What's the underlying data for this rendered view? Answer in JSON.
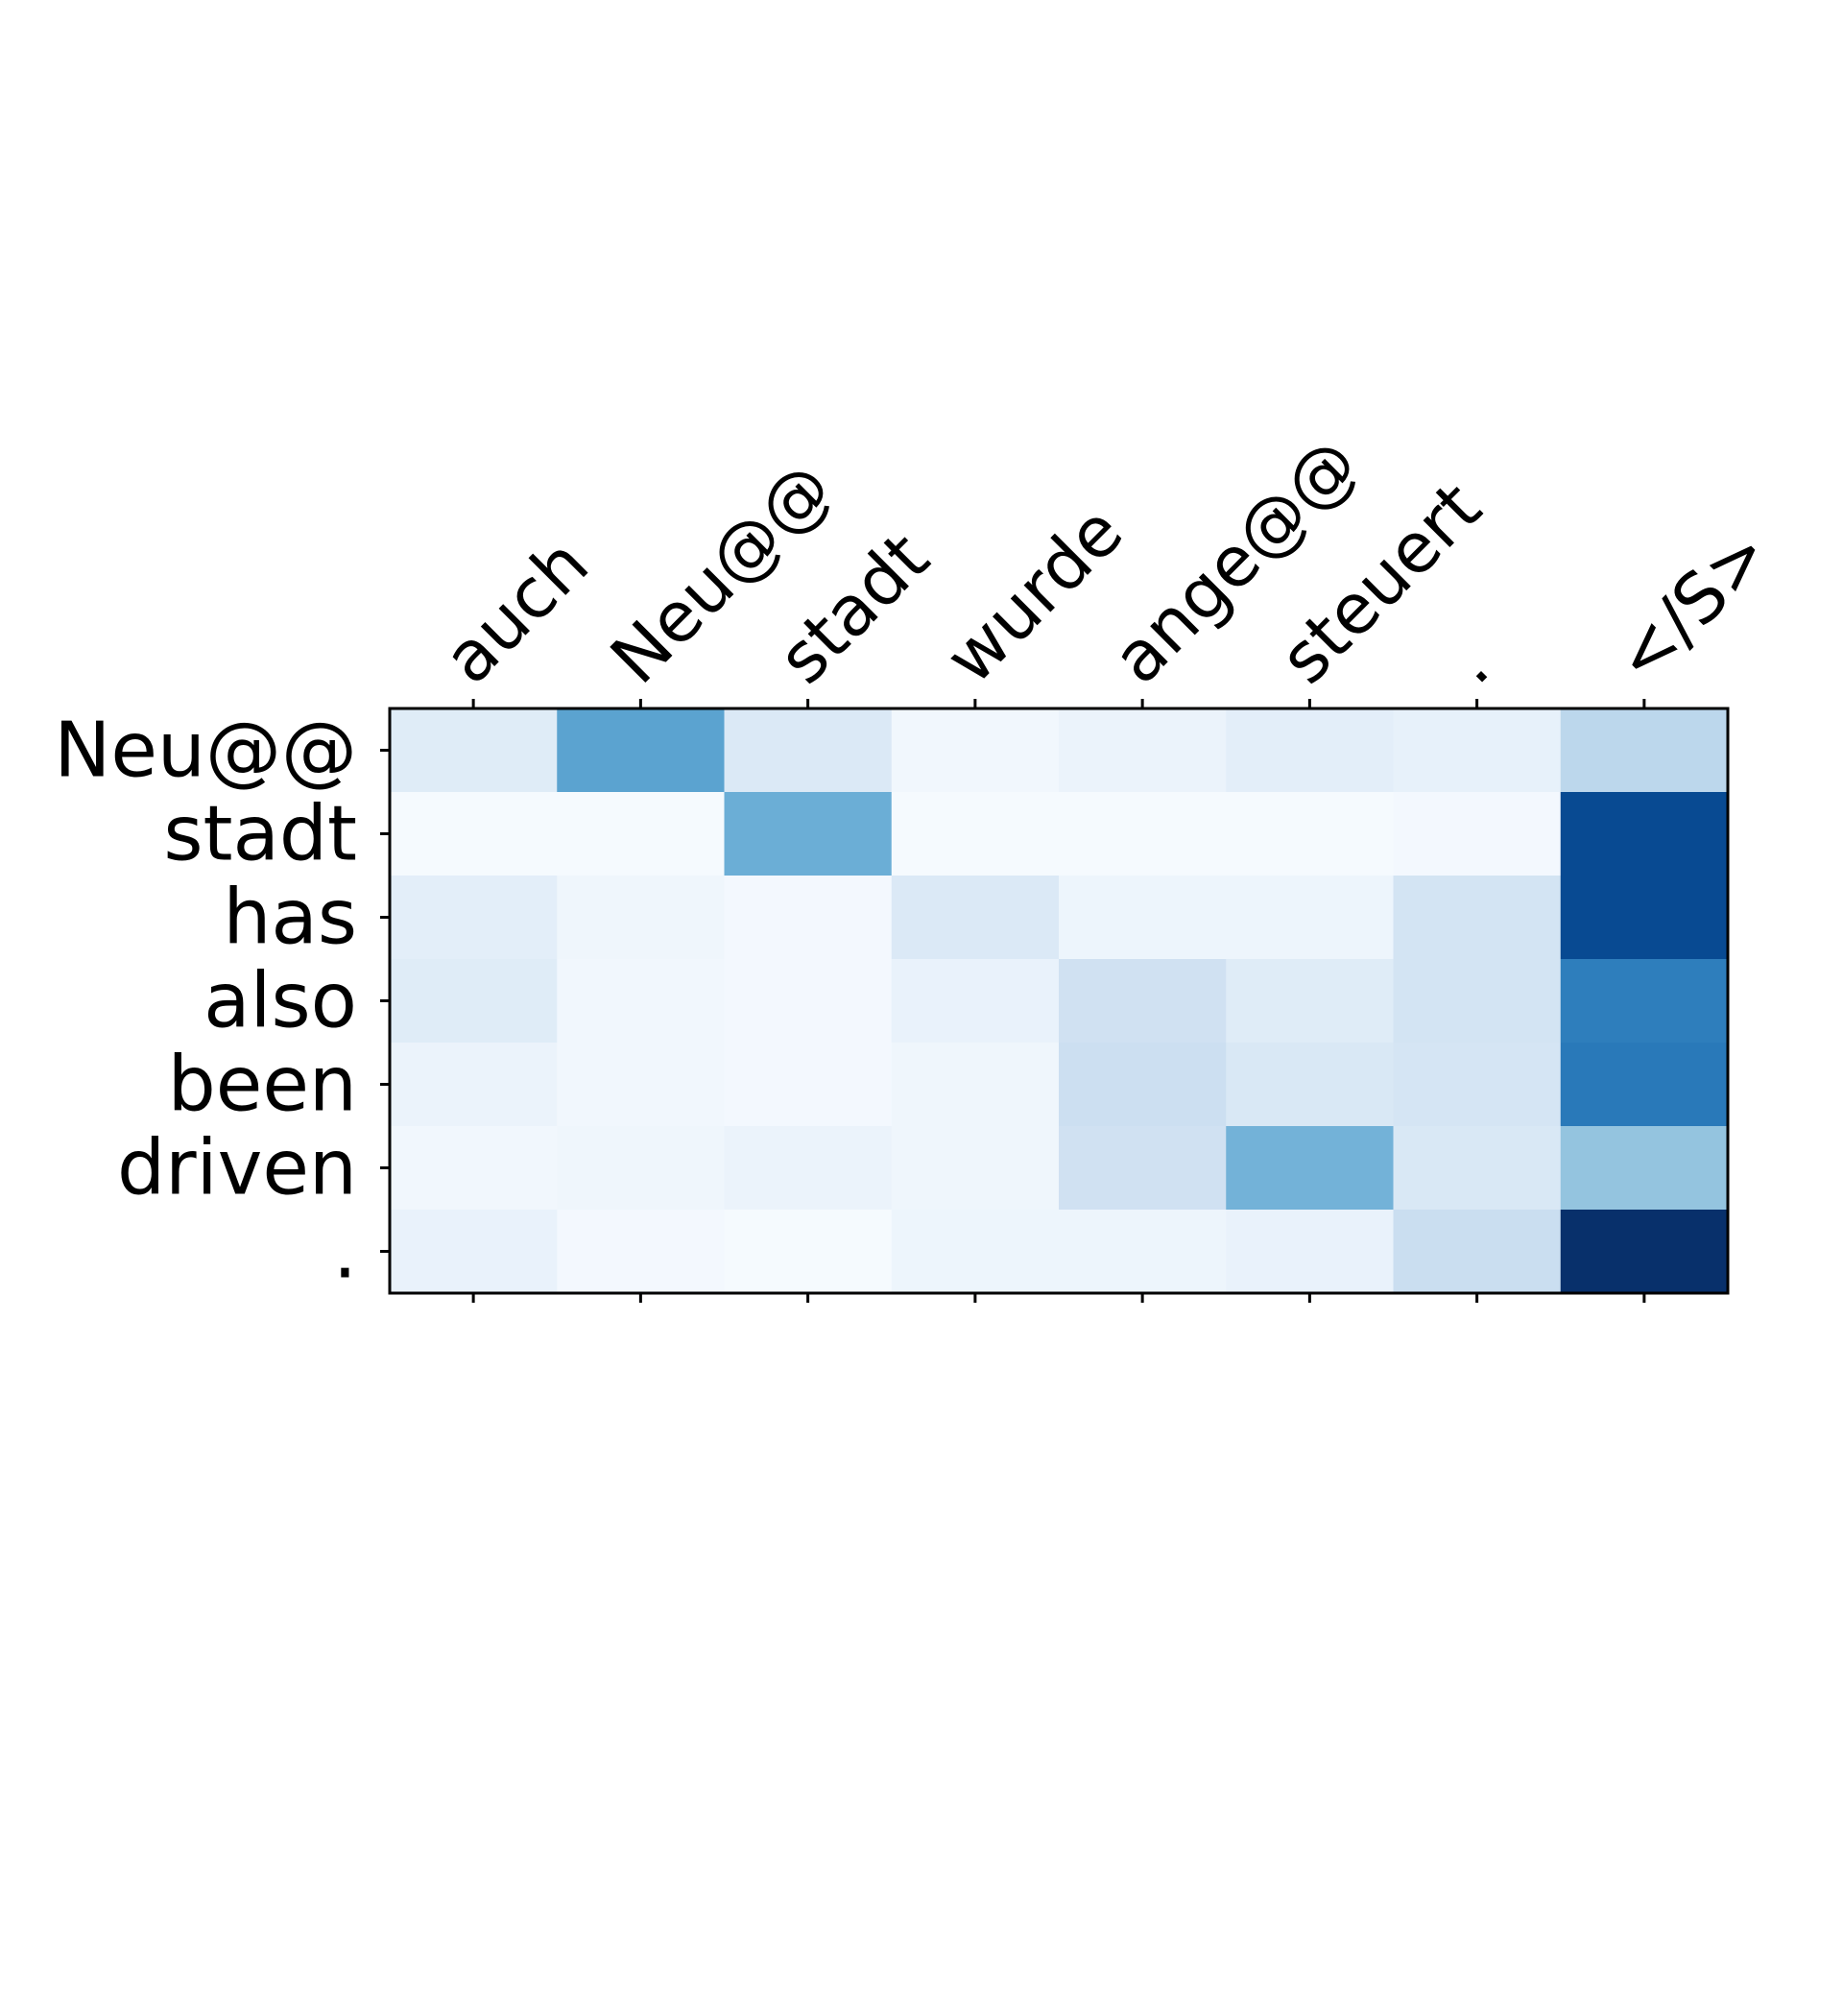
{
  "chart_data": {
    "type": "heatmap",
    "colormap": "Blues",
    "x_tick_position": "top",
    "x_ticks_mirrored_bottom": true,
    "x_labels": [
      "auch",
      "Neu@@",
      "stadt",
      "wurde",
      "ange@@",
      "steuert",
      ".",
      "</S>"
    ],
    "y_labels": [
      "Neu@@",
      "stadt",
      "has",
      "also",
      "been",
      "driven",
      "."
    ],
    "values": [
      [
        0.12,
        0.55,
        0.14,
        0.03,
        0.06,
        0.1,
        0.08,
        0.28
      ],
      [
        0.01,
        0.01,
        0.5,
        0.01,
        0.01,
        0.01,
        0.02,
        0.9
      ],
      [
        0.1,
        0.04,
        0.02,
        0.14,
        0.05,
        0.05,
        0.18,
        0.9
      ],
      [
        0.12,
        0.03,
        0.02,
        0.07,
        0.2,
        0.12,
        0.18,
        0.7
      ],
      [
        0.06,
        0.03,
        0.02,
        0.04,
        0.22,
        0.15,
        0.17,
        0.72
      ],
      [
        0.03,
        0.04,
        0.06,
        0.04,
        0.2,
        0.48,
        0.15,
        0.4
      ],
      [
        0.07,
        0.02,
        0.01,
        0.05,
        0.05,
        0.07,
        0.23,
        1.0
      ]
    ],
    "vmin": 0,
    "vmax": 1
  }
}
